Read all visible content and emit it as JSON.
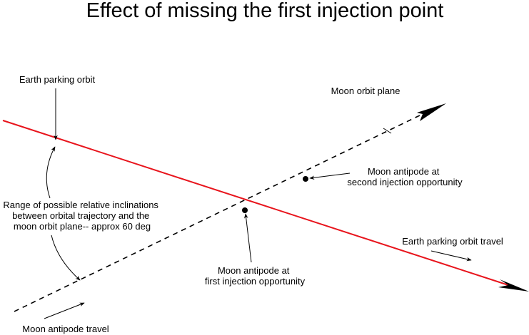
{
  "title": "Effect of missing the first injection point",
  "labels": {
    "earth_parking_orbit": "Earth parking orbit",
    "moon_orbit_plane": "Moon orbit plane",
    "moon_antipode_second": [
      "Moon antipode at",
      "second injection opportunity"
    ],
    "range_of_inclinations": [
      "Range of possible relative inclinations",
      "between orbital trajectory and the",
      "moon orbit plane-- approx 60 deg"
    ],
    "moon_antipode_first": [
      "Moon antipode at",
      "first injection opportunity"
    ],
    "earth_parking_orbit_travel": "Earth parking orbit travel",
    "moon_antipode_travel": "Moon antipode travel"
  },
  "colors": {
    "earth_orbit": "#e8141c",
    "moon_orbit": "#000000",
    "text": "#000000"
  }
}
